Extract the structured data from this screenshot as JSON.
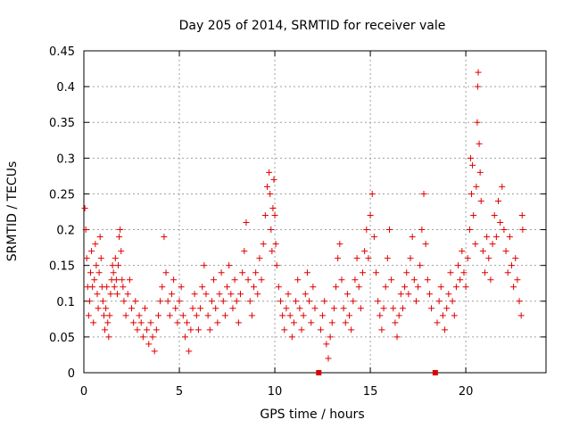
{
  "chart_data": {
    "type": "scatter",
    "title": "Day 205 of 2014, SRMTID for receiver vale",
    "xlabel": "GPS time / hours",
    "ylabel": "SRMTID / TECUs",
    "xlim": [
      0,
      24.2
    ],
    "ylim": [
      0,
      0.45
    ],
    "xticks": [
      0,
      5,
      10,
      15,
      20
    ],
    "yticks": [
      0,
      0.05,
      0.1,
      0.15,
      0.2,
      0.25,
      0.3,
      0.35,
      0.4,
      0.45
    ],
    "ytick_labels": [
      "0",
      "0.05",
      "0.1",
      "0.15",
      "0.2",
      "0.25",
      "0.3",
      "0.35",
      "0.4",
      "0.45"
    ],
    "grid": true,
    "marker": "plus",
    "color": "#e00000",
    "zero_markers_x": [
      12.3,
      18.4
    ],
    "series": [
      {
        "name": "SRMTID",
        "points": [
          [
            0.05,
            0.23
          ],
          [
            0.1,
            0.2
          ],
          [
            0.15,
            0.16
          ],
          [
            0.2,
            0.12
          ],
          [
            0.25,
            0.08
          ],
          [
            0.3,
            0.1
          ],
          [
            0.35,
            0.14
          ],
          [
            0.4,
            0.17
          ],
          [
            0.45,
            0.12
          ],
          [
            0.5,
            0.07
          ],
          [
            0.55,
            0.13
          ],
          [
            0.6,
            0.18
          ],
          [
            0.65,
            0.15
          ],
          [
            0.7,
            0.11
          ],
          [
            0.75,
            0.09
          ],
          [
            0.8,
            0.14
          ],
          [
            0.85,
            0.19
          ],
          [
            0.9,
            0.16
          ],
          [
            0.95,
            0.12
          ],
          [
            1.0,
            0.1
          ],
          [
            1.05,
            0.08
          ],
          [
            1.1,
            0.06
          ],
          [
            1.15,
            0.09
          ],
          [
            1.2,
            0.12
          ],
          [
            1.25,
            0.07
          ],
          [
            1.3,
            0.05
          ],
          [
            1.35,
            0.08
          ],
          [
            1.4,
            0.11
          ],
          [
            1.45,
            0.13
          ],
          [
            1.5,
            0.15
          ],
          [
            1.55,
            0.14
          ],
          [
            1.6,
            0.12
          ],
          [
            1.65,
            0.16
          ],
          [
            1.7,
            0.13
          ],
          [
            1.75,
            0.11
          ],
          [
            1.8,
            0.15
          ],
          [
            1.85,
            0.19
          ],
          [
            1.9,
            0.2
          ],
          [
            1.95,
            0.17
          ],
          [
            2.0,
            0.13
          ],
          [
            2.05,
            0.12
          ],
          [
            2.1,
            0.1
          ],
          [
            2.2,
            0.08
          ],
          [
            2.3,
            0.11
          ],
          [
            2.4,
            0.13
          ],
          [
            2.5,
            0.09
          ],
          [
            2.6,
            0.07
          ],
          [
            2.7,
            0.1
          ],
          [
            2.8,
            0.06
          ],
          [
            2.9,
            0.08
          ],
          [
            3.0,
            0.07
          ],
          [
            3.1,
            0.05
          ],
          [
            3.2,
            0.09
          ],
          [
            3.3,
            0.06
          ],
          [
            3.4,
            0.04
          ],
          [
            3.5,
            0.07
          ],
          [
            3.6,
            0.05
          ],
          [
            3.7,
            0.03
          ],
          [
            3.8,
            0.06
          ],
          [
            3.9,
            0.08
          ],
          [
            4.0,
            0.1
          ],
          [
            4.1,
            0.12
          ],
          [
            4.2,
            0.19
          ],
          [
            4.3,
            0.14
          ],
          [
            4.4,
            0.1
          ],
          [
            4.5,
            0.08
          ],
          [
            4.6,
            0.11
          ],
          [
            4.7,
            0.13
          ],
          [
            4.8,
            0.09
          ],
          [
            4.9,
            0.07
          ],
          [
            5.0,
            0.1
          ],
          [
            5.1,
            0.12
          ],
          [
            5.2,
            0.08
          ],
          [
            5.3,
            0.05
          ],
          [
            5.4,
            0.07
          ],
          [
            5.5,
            0.03
          ],
          [
            5.6,
            0.06
          ],
          [
            5.7,
            0.09
          ],
          [
            5.8,
            0.11
          ],
          [
            5.9,
            0.08
          ],
          [
            6.0,
            0.06
          ],
          [
            6.1,
            0.09
          ],
          [
            6.2,
            0.12
          ],
          [
            6.3,
            0.15
          ],
          [
            6.4,
            0.11
          ],
          [
            6.5,
            0.08
          ],
          [
            6.6,
            0.06
          ],
          [
            6.7,
            0.1
          ],
          [
            6.8,
            0.13
          ],
          [
            6.9,
            0.09
          ],
          [
            7.0,
            0.07
          ],
          [
            7.1,
            0.11
          ],
          [
            7.2,
            0.14
          ],
          [
            7.3,
            0.1
          ],
          [
            7.4,
            0.08
          ],
          [
            7.5,
            0.12
          ],
          [
            7.6,
            0.15
          ],
          [
            7.7,
            0.11
          ],
          [
            7.8,
            0.09
          ],
          [
            7.9,
            0.13
          ],
          [
            8.0,
            0.1
          ],
          [
            8.1,
            0.07
          ],
          [
            8.2,
            0.11
          ],
          [
            8.3,
            0.14
          ],
          [
            8.4,
            0.17
          ],
          [
            8.5,
            0.21
          ],
          [
            8.6,
            0.13
          ],
          [
            8.7,
            0.1
          ],
          [
            8.8,
            0.08
          ],
          [
            8.9,
            0.12
          ],
          [
            9.0,
            0.14
          ],
          [
            9.1,
            0.11
          ],
          [
            9.2,
            0.16
          ],
          [
            9.3,
            0.13
          ],
          [
            9.4,
            0.18
          ],
          [
            9.5,
            0.22
          ],
          [
            9.6,
            0.26
          ],
          [
            9.7,
            0.28
          ],
          [
            9.75,
            0.25
          ],
          [
            9.8,
            0.2
          ],
          [
            9.85,
            0.17
          ],
          [
            9.9,
            0.23
          ],
          [
            9.95,
            0.27
          ],
          [
            10.0,
            0.22
          ],
          [
            10.05,
            0.18
          ],
          [
            10.1,
            0.15
          ],
          [
            10.2,
            0.12
          ],
          [
            10.3,
            0.1
          ],
          [
            10.4,
            0.08
          ],
          [
            10.5,
            0.06
          ],
          [
            10.6,
            0.09
          ],
          [
            10.7,
            0.11
          ],
          [
            10.8,
            0.08
          ],
          [
            10.9,
            0.05
          ],
          [
            11.0,
            0.07
          ],
          [
            11.1,
            0.1
          ],
          [
            11.2,
            0.13
          ],
          [
            11.3,
            0.09
          ],
          [
            11.4,
            0.06
          ],
          [
            11.5,
            0.08
          ],
          [
            11.6,
            0.11
          ],
          [
            11.7,
            0.14
          ],
          [
            11.8,
            0.1
          ],
          [
            11.9,
            0.07
          ],
          [
            12.0,
            0.12
          ],
          [
            12.1,
            0.09
          ],
          [
            12.4,
            0.06
          ],
          [
            12.5,
            0.08
          ],
          [
            12.6,
            0.1
          ],
          [
            12.7,
            0.04
          ],
          [
            12.8,
            0.02
          ],
          [
            12.9,
            0.05
          ],
          [
            13.0,
            0.07
          ],
          [
            13.1,
            0.09
          ],
          [
            13.2,
            0.12
          ],
          [
            13.3,
            0.16
          ],
          [
            13.4,
            0.18
          ],
          [
            13.5,
            0.13
          ],
          [
            13.6,
            0.09
          ],
          [
            13.7,
            0.07
          ],
          [
            13.8,
            0.11
          ],
          [
            13.9,
            0.08
          ],
          [
            14.0,
            0.06
          ],
          [
            14.1,
            0.1
          ],
          [
            14.2,
            0.13
          ],
          [
            14.3,
            0.16
          ],
          [
            14.4,
            0.12
          ],
          [
            14.5,
            0.09
          ],
          [
            14.6,
            0.14
          ],
          [
            14.7,
            0.17
          ],
          [
            14.8,
            0.2
          ],
          [
            14.9,
            0.16
          ],
          [
            15.0,
            0.22
          ],
          [
            15.1,
            0.25
          ],
          [
            15.2,
            0.19
          ],
          [
            15.3,
            0.14
          ],
          [
            15.4,
            0.1
          ],
          [
            15.5,
            0.08
          ],
          [
            15.6,
            0.06
          ],
          [
            15.7,
            0.09
          ],
          [
            15.8,
            0.12
          ],
          [
            15.9,
            0.16
          ],
          [
            16.0,
            0.2
          ],
          [
            16.1,
            0.13
          ],
          [
            16.2,
            0.09
          ],
          [
            16.3,
            0.07
          ],
          [
            16.4,
            0.05
          ],
          [
            16.5,
            0.08
          ],
          [
            16.6,
            0.11
          ],
          [
            16.7,
            0.09
          ],
          [
            16.8,
            0.12
          ],
          [
            16.9,
            0.14
          ],
          [
            17.0,
            0.11
          ],
          [
            17.1,
            0.16
          ],
          [
            17.2,
            0.19
          ],
          [
            17.3,
            0.13
          ],
          [
            17.4,
            0.1
          ],
          [
            17.5,
            0.12
          ],
          [
            17.6,
            0.15
          ],
          [
            17.7,
            0.2
          ],
          [
            17.8,
            0.25
          ],
          [
            17.9,
            0.18
          ],
          [
            18.0,
            0.13
          ],
          [
            18.1,
            0.11
          ],
          [
            18.2,
            0.09
          ],
          [
            18.5,
            0.07
          ],
          [
            18.6,
            0.1
          ],
          [
            18.7,
            0.12
          ],
          [
            18.8,
            0.08
          ],
          [
            18.9,
            0.06
          ],
          [
            19.0,
            0.09
          ],
          [
            19.1,
            0.11
          ],
          [
            19.2,
            0.14
          ],
          [
            19.3,
            0.1
          ],
          [
            19.4,
            0.08
          ],
          [
            19.5,
            0.12
          ],
          [
            19.6,
            0.15
          ],
          [
            19.7,
            0.13
          ],
          [
            19.8,
            0.17
          ],
          [
            19.9,
            0.14
          ],
          [
            20.0,
            0.12
          ],
          [
            20.1,
            0.16
          ],
          [
            20.2,
            0.2
          ],
          [
            20.25,
            0.3
          ],
          [
            20.3,
            0.25
          ],
          [
            20.35,
            0.29
          ],
          [
            20.4,
            0.22
          ],
          [
            20.5,
            0.18
          ],
          [
            20.55,
            0.26
          ],
          [
            20.6,
            0.35
          ],
          [
            20.62,
            0.4
          ],
          [
            20.65,
            0.42
          ],
          [
            20.7,
            0.32
          ],
          [
            20.75,
            0.28
          ],
          [
            20.8,
            0.24
          ],
          [
            20.9,
            0.17
          ],
          [
            21.0,
            0.14
          ],
          [
            21.1,
            0.19
          ],
          [
            21.2,
            0.16
          ],
          [
            21.3,
            0.13
          ],
          [
            21.4,
            0.18
          ],
          [
            21.5,
            0.22
          ],
          [
            21.6,
            0.19
          ],
          [
            21.7,
            0.24
          ],
          [
            21.8,
            0.21
          ],
          [
            21.9,
            0.26
          ],
          [
            22.0,
            0.2
          ],
          [
            22.1,
            0.17
          ],
          [
            22.2,
            0.14
          ],
          [
            22.3,
            0.19
          ],
          [
            22.4,
            0.15
          ],
          [
            22.5,
            0.12
          ],
          [
            22.6,
            0.16
          ],
          [
            22.7,
            0.13
          ],
          [
            22.8,
            0.1
          ],
          [
            22.9,
            0.08
          ],
          [
            22.95,
            0.22
          ],
          [
            22.98,
            0.2
          ]
        ]
      }
    ]
  }
}
